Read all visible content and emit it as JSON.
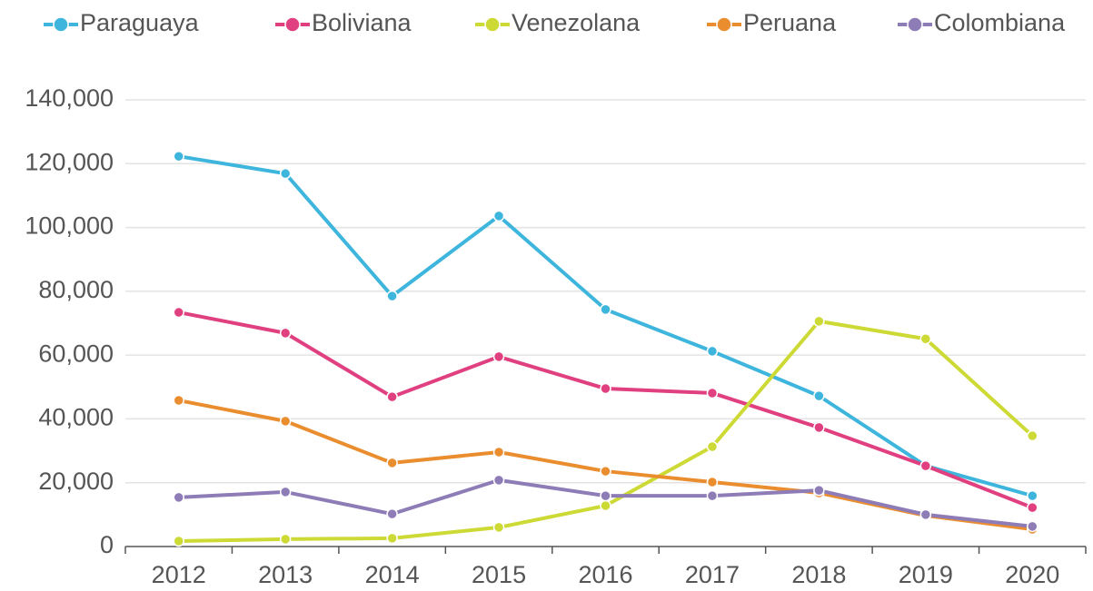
{
  "chart_data": {
    "type": "line",
    "categories": [
      "2012",
      "2013",
      "2014",
      "2015",
      "2016",
      "2017",
      "2018",
      "2019",
      "2020"
    ],
    "series": [
      {
        "name": "Paraguaya",
        "color": "#3eb5dc",
        "values": [
          122300,
          116900,
          78500,
          103600,
          74300,
          61200,
          47200,
          25300,
          15900
        ]
      },
      {
        "name": "Boliviana",
        "color": "#e0407f",
        "values": [
          73400,
          66900,
          46900,
          59500,
          49500,
          48100,
          37300,
          25300,
          12200
        ]
      },
      {
        "name": "Venezolana",
        "color": "#cdd934",
        "values": [
          1700,
          2300,
          2600,
          6000,
          12800,
          31300,
          70600,
          65100,
          34700
        ]
      },
      {
        "name": "Peruana",
        "color": "#ea8d2f",
        "values": [
          45800,
          39300,
          26200,
          29600,
          23600,
          20200,
          16800,
          9700,
          5400
        ]
      },
      {
        "name": "Colombiana",
        "color": "#8e7cb7",
        "values": [
          15400,
          17100,
          10200,
          20800,
          15900,
          15900,
          17600,
          10000,
          6300
        ]
      }
    ],
    "ylim": [
      0,
      140000
    ],
    "yticks": [
      0,
      {
        "value": 20000,
        "label": "20,000"
      },
      {
        "value": 40000,
        "label": "40,000"
      },
      {
        "value": 60000,
        "label": "60,000"
      },
      {
        "value": 80000,
        "label": "80,000"
      },
      {
        "value": 100000,
        "label": "100,000"
      },
      {
        "value": 120000,
        "label": "120,000"
      },
      {
        "value": 140000,
        "label": "140,000"
      }
    ],
    "grid": true,
    "legend": "top"
  }
}
